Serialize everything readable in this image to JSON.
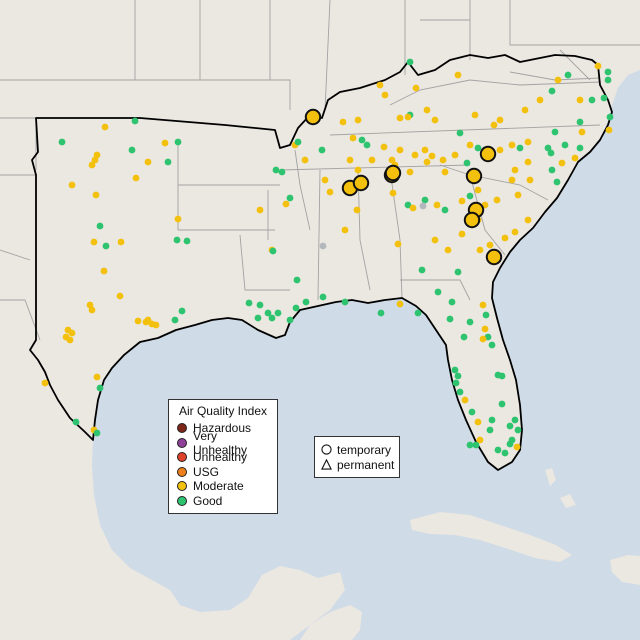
{
  "legend": {
    "title": "Air Quality Index",
    "categories": [
      {
        "label": "Hazardous",
        "color": "#7e2418"
      },
      {
        "label": "Very Unhealthy",
        "color": "#8f3f97"
      },
      {
        "label": "Unhealthy",
        "color": "#e0412b"
      },
      {
        "label": "USG",
        "color": "#ee7f1c"
      },
      {
        "label": "Moderate",
        "color": "#f3c10d"
      },
      {
        "label": "Good",
        "color": "#2ec46f"
      }
    ],
    "no_data_color": "#b4b8bd"
  },
  "type_legend": {
    "temporary": {
      "label": "temporary",
      "shape": "circle-icon"
    },
    "permanent": {
      "label": "permanent",
      "shape": "triangle-icon"
    }
  },
  "colors": {
    "water": "#cfdbe6",
    "land": "#ebe7e1",
    "borders": "#9f9f9f",
    "region_outline": "#000000"
  }
}
